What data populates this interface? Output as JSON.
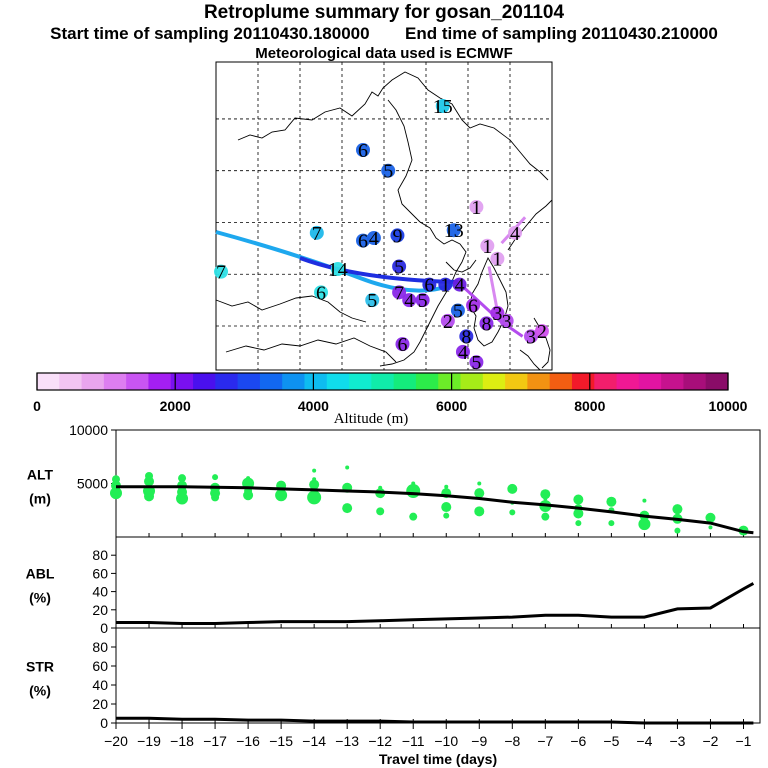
{
  "header": {
    "title": "Retroplume summary for gosan_201104",
    "start_label": "Start time of sampling 20110430.180000",
    "end_label": "End time of sampling 20110430.210000",
    "met_label": "Meteorological data used is ECMWF"
  },
  "colorbar": {
    "label": "Altitude (m)",
    "ticks": [
      0,
      2000,
      4000,
      6000,
      8000,
      10000
    ],
    "tick_labels": [
      "0",
      "2000",
      "4000",
      "6000",
      "8000",
      "10000"
    ],
    "range": [
      0,
      10000
    ],
    "colors": [
      "#f9e0f9",
      "#f2c4f2",
      "#e9a5ee",
      "#dd7ef0",
      "#c955f2",
      "#a41ff2",
      "#7a10f0",
      "#4a10ee",
      "#2a2aee",
      "#1b48f0",
      "#1268f0",
      "#0e92f0",
      "#0ebcf0",
      "#10dcec",
      "#10ecd0",
      "#10ecaa",
      "#14ec7c",
      "#2cec4a",
      "#6cec28",
      "#a6ec18",
      "#dcee12",
      "#f2c812",
      "#f29212",
      "#f25e12",
      "#f21a2a",
      "#f21e6c",
      "#f01894",
      "#e214a2",
      "#c6128e",
      "#a80e7a",
      "#8a0c68"
    ]
  },
  "map": {
    "trajectory_colors": [
      "#1ea8ee",
      "#1e2ee0",
      "#b44cee",
      "#d888f0"
    ],
    "labels": [
      {
        "text": "15",
        "x": 127,
        "y": 46.5,
        "color": "#1ec8ea"
      },
      {
        "text": "6",
        "x": 117.5,
        "y": 44.8,
        "color": "#1a62e6"
      },
      {
        "text": "5",
        "x": 120.5,
        "y": 44.0,
        "color": "#1a62e6"
      },
      {
        "text": "7",
        "x": 112,
        "y": 41.6,
        "color": "#1eb8ea"
      },
      {
        "text": "6",
        "x": 117.5,
        "y": 41.3,
        "color": "#1a62e6"
      },
      {
        "text": "4",
        "x": 118.8,
        "y": 41.4,
        "color": "#1a62e6"
      },
      {
        "text": "9",
        "x": 121.6,
        "y": 41.5,
        "color": "#1a3ee6"
      },
      {
        "text": "13",
        "x": 128.3,
        "y": 41.7,
        "color": "#1a62e6"
      },
      {
        "text": "1",
        "x": 131,
        "y": 42.6,
        "color": "#e0a0f0"
      },
      {
        "text": "4",
        "x": 135.6,
        "y": 41.6,
        "color": "#e0a0f0"
      },
      {
        "text": "1",
        "x": 132.3,
        "y": 41.1,
        "color": "#e0a0f0"
      },
      {
        "text": "1",
        "x": 133.5,
        "y": 40.6,
        "color": "#e0a0f0"
      },
      {
        "text": "7",
        "x": 100.6,
        "y": 40.1,
        "color": "#2ee0e6"
      },
      {
        "text": "14",
        "x": 114.5,
        "y": 40.2,
        "color": "#2ee0e6"
      },
      {
        "text": "5",
        "x": 121.8,
        "y": 40.3,
        "color": "#2a2ae0"
      },
      {
        "text": "6",
        "x": 112.5,
        "y": 39.3,
        "color": "#2ee0e6"
      },
      {
        "text": "5",
        "x": 118.6,
        "y": 39.0,
        "color": "#2ec0ea"
      },
      {
        "text": "7",
        "x": 121.8,
        "y": 39.3,
        "color": "#8a28e8"
      },
      {
        "text": "4",
        "x": 123.0,
        "y": 39.0,
        "color": "#8a28e8"
      },
      {
        "text": "5",
        "x": 124.6,
        "y": 39.0,
        "color": "#8a28e8"
      },
      {
        "text": "6",
        "x": 125.4,
        "y": 39.6,
        "color": "#2a2ae0"
      },
      {
        "text": "1",
        "x": 127.3,
        "y": 39.6,
        "color": "#2a2ae0"
      },
      {
        "text": "4",
        "x": 129,
        "y": 39.6,
        "color": "#6a1ee0"
      },
      {
        "text": "5",
        "x": 128.8,
        "y": 38.6,
        "color": "#1a62e6"
      },
      {
        "text": "6",
        "x": 130.6,
        "y": 38.8,
        "color": "#a42ee8"
      },
      {
        "text": "2",
        "x": 127.6,
        "y": 38.2,
        "color": "#b44cee"
      },
      {
        "text": "3",
        "x": 133.5,
        "y": 38.5,
        "color": "#a42ee8"
      },
      {
        "text": "3",
        "x": 134.6,
        "y": 38.2,
        "color": "#b44cee"
      },
      {
        "text": "8",
        "x": 132.2,
        "y": 38.1,
        "color": "#8a28e8"
      },
      {
        "text": "8",
        "x": 129.8,
        "y": 37.6,
        "color": "#2a2ae0"
      },
      {
        "text": "3",
        "x": 137.5,
        "y": 37.6,
        "color": "#b44cee"
      },
      {
        "text": "2",
        "x": 138.8,
        "y": 37.8,
        "color": "#d050ee"
      },
      {
        "text": "6",
        "x": 122.2,
        "y": 37.3,
        "color": "#8a28e8"
      },
      {
        "text": "4",
        "x": 129.4,
        "y": 37.0,
        "color": "#8a28e8"
      },
      {
        "text": "5",
        "x": 131.0,
        "y": 36.6,
        "color": "#8a28e8"
      }
    ]
  },
  "chart_data": [
    {
      "type": "line+scatter",
      "panel": "ALT",
      "ylabel": [
        "ALT",
        "(m)"
      ],
      "x_label": "Travel time (days)",
      "x_ticks": [
        -20,
        -19,
        -18,
        -17,
        -16,
        -15,
        -14,
        -13,
        -12,
        -11,
        -10,
        -9,
        -8,
        -7,
        -6,
        -5,
        -4,
        -3,
        -2,
        -1
      ],
      "x_tick_labels": [
        "−20",
        "−19",
        "−18",
        "−17",
        "−16",
        "−15",
        "−14",
        "−13",
        "−12",
        "−11",
        "−10",
        "−9",
        "−8",
        "−7",
        "−6",
        "−5",
        "−4",
        "−3",
        "−2",
        "−1"
      ],
      "xlim": [
        -20,
        -0.5
      ],
      "ylim": [
        0,
        10000
      ],
      "y_ticks": [
        5000,
        10000
      ],
      "y_tick_labels": [
        "5000",
        "10000"
      ],
      "line": {
        "x": [
          -20,
          -19,
          -18,
          -17,
          -16,
          -15,
          -14,
          -13,
          -12,
          -11,
          -10,
          -9,
          -8,
          -7,
          -6,
          -5,
          -4,
          -3,
          -2,
          -1,
          -0.7
        ],
        "y": [
          4700,
          4700,
          4700,
          4650,
          4600,
          4500,
          4400,
          4300,
          4200,
          4050,
          3850,
          3600,
          3250,
          3000,
          2700,
          2350,
          1950,
          1650,
          1300,
          500,
          400
        ]
      },
      "scatter": {
        "x": [
          -20,
          -20,
          -20,
          -19,
          -19,
          -19,
          -19,
          -18,
          -18,
          -18,
          -18,
          -17,
          -17,
          -17,
          -17,
          -16,
          -16,
          -16,
          -16,
          -15,
          -15,
          -15,
          -14,
          -14,
          -14,
          -14,
          -13,
          -13,
          -13,
          -12,
          -12,
          -12,
          -11,
          -11,
          -11,
          -10,
          -10,
          -10,
          -10,
          -9,
          -9,
          -9,
          -8,
          -8,
          -8,
          -7,
          -7,
          -7,
          -7,
          -6,
          -6,
          -6,
          -6,
          -5,
          -5,
          -5,
          -4,
          -4,
          -4,
          -3,
          -3,
          -3,
          -2,
          -2,
          -1
        ],
        "y": [
          5400,
          4800,
          4100,
          5700,
          5200,
          3800,
          4300,
          5500,
          4800,
          3600,
          4200,
          5600,
          4600,
          3700,
          4100,
          5500,
          4300,
          3900,
          5000,
          4300,
          4800,
          3900,
          5400,
          6200,
          4900,
          3700,
          6500,
          4600,
          2700,
          4600,
          4100,
          2400,
          5000,
          4300,
          1900,
          4700,
          4100,
          2800,
          2000,
          5000,
          4100,
          2400,
          3200,
          4500,
          2300,
          4000,
          1900,
          3600,
          2900,
          3500,
          2700,
          2200,
          1300,
          3300,
          2500,
          1300,
          3400,
          2000,
          1200,
          2600,
          1700,
          600,
          1800,
          900,
          600
        ],
        "sizes": [
          4,
          5,
          6,
          4,
          5,
          5,
          6,
          4,
          5,
          6,
          5,
          3,
          5,
          4,
          5,
          2,
          4,
          5,
          6,
          4,
          5,
          6,
          2,
          2,
          5,
          7,
          2,
          5,
          5,
          2,
          5,
          4,
          2,
          7,
          4,
          2,
          5,
          5,
          3,
          2,
          5,
          5,
          2,
          5,
          3,
          5,
          4,
          2,
          6,
          5,
          4,
          5,
          3,
          5,
          3,
          3,
          2,
          5,
          6,
          5,
          5,
          3,
          5,
          2,
          5
        ]
      }
    },
    {
      "type": "line",
      "panel": "ABL",
      "ylabel": [
        "ABL",
        "(%)"
      ],
      "ylim": [
        0,
        100
      ],
      "y_ticks": [
        0,
        20,
        40,
        60,
        80
      ],
      "y_tick_labels": [
        "0",
        "20",
        "40",
        "60",
        "80"
      ],
      "x": [
        -20,
        -19,
        -18,
        -17,
        -16,
        -15,
        -14,
        -13,
        -12,
        -11,
        -10,
        -9,
        -8,
        -7,
        -6,
        -5,
        -4,
        -3,
        -2,
        -1,
        -0.7
      ],
      "y": [
        6,
        6,
        5,
        5,
        6,
        7,
        7,
        7,
        8,
        9,
        10,
        11,
        12,
        14,
        14,
        12,
        12,
        21,
        22,
        43,
        49
      ]
    },
    {
      "type": "line",
      "panel": "STR",
      "ylabel": [
        "STR",
        "(%)"
      ],
      "ylim": [
        0,
        100
      ],
      "y_ticks": [
        0,
        20,
        40,
        60,
        80
      ],
      "y_tick_labels": [
        "0",
        "20",
        "40",
        "60",
        "80"
      ],
      "x": [
        -20,
        -19,
        -18,
        -17,
        -16,
        -15,
        -14,
        -13,
        -12,
        -11,
        -10,
        -9,
        -8,
        -7,
        -6,
        -5,
        -4,
        -3,
        -2,
        -1,
        -0.7
      ],
      "y": [
        5,
        5,
        4,
        4,
        3,
        3,
        2,
        2,
        2,
        1,
        1,
        1,
        1,
        1,
        1,
        1,
        0,
        0,
        0,
        0,
        0
      ]
    }
  ]
}
